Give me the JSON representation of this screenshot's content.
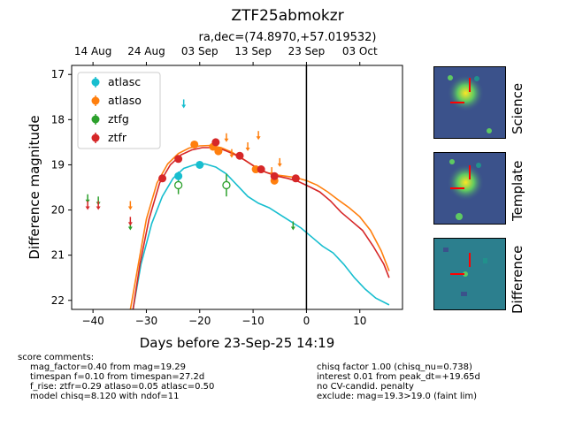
{
  "header": {
    "title": "ZTF25abmokzr",
    "subtitle": "ra,dec=(74.8970,+57.019532)"
  },
  "chart_data": {
    "type": "scatter",
    "xlabel": "Days before 23-Sep-25 14:19",
    "ylabel": "Difference magnitude",
    "xlim": [
      -44,
      18
    ],
    "ylim": [
      22.2,
      16.8
    ],
    "y_inverted": true,
    "x_ticks": [
      -40,
      -30,
      -20,
      -10,
      0,
      10
    ],
    "y_ticks": [
      17,
      18,
      19,
      20,
      21,
      22
    ],
    "top_axis_ticks": [
      {
        "x": -40,
        "label": "14 Aug"
      },
      {
        "x": -30,
        "label": "24 Aug"
      },
      {
        "x": -20,
        "label": "03 Sep"
      },
      {
        "x": -10,
        "label": "13 Sep"
      },
      {
        "x": 0,
        "label": "23 Sep"
      },
      {
        "x": 10,
        "label": "03 Oct"
      }
    ],
    "vline_x": 0,
    "legend": {
      "position": "top-left",
      "entries": [
        "atlasc",
        "atlaso",
        "ztfg",
        "ztfr"
      ]
    },
    "series": [
      {
        "name": "atlasc",
        "color": "#17becf",
        "detections": [
          {
            "x": -20,
            "y": 19.0,
            "err": 0.05
          },
          {
            "x": -24,
            "y": 19.25,
            "err": 0.1
          }
        ],
        "upper_limits": [
          {
            "x": -23,
            "y": 17.65
          }
        ]
      },
      {
        "name": "atlaso",
        "color": "#ff7f0e",
        "detections": [
          {
            "x": -21,
            "y": 18.55,
            "err": 0.06
          },
          {
            "x": -17.5,
            "y": 18.6,
            "err": 0.06
          },
          {
            "x": -16.5,
            "y": 18.7,
            "err": 0.06
          },
          {
            "x": -9.5,
            "y": 19.1,
            "err": 0.07
          },
          {
            "x": -6,
            "y": 19.35,
            "err": 0.07
          }
        ],
        "upper_limits": [
          {
            "x": -33,
            "y": 19.9
          },
          {
            "x": -15,
            "y": 18.4
          },
          {
            "x": -14,
            "y": 18.75
          },
          {
            "x": -11,
            "y": 18.6
          },
          {
            "x": -9,
            "y": 18.35
          },
          {
            "x": -6.5,
            "y": 19.15
          },
          {
            "x": -5,
            "y": 18.95
          }
        ]
      },
      {
        "name": "ztfg",
        "color": "#2ca02c",
        "nondetections": [
          {
            "x": -24,
            "y": 19.45,
            "err": 0.2
          },
          {
            "x": -15,
            "y": 19.45,
            "err": 0.25
          }
        ],
        "upper_limits": [
          {
            "x": -41,
            "y": 19.75
          },
          {
            "x": -39,
            "y": 19.8
          },
          {
            "x": -33,
            "y": 20.35
          },
          {
            "x": -2.5,
            "y": 20.35
          }
        ]
      },
      {
        "name": "ztfr",
        "color": "#d62728",
        "detections": [
          {
            "x": -27,
            "y": 19.3,
            "err": 0.05
          },
          {
            "x": -24,
            "y": 18.87,
            "err": 0.04
          },
          {
            "x": -17,
            "y": 18.5,
            "err": 0.05
          },
          {
            "x": -12.5,
            "y": 18.8,
            "err": 0.05
          },
          {
            "x": -8.5,
            "y": 19.1,
            "err": 0.05
          },
          {
            "x": -6,
            "y": 19.25,
            "err": 0.05
          },
          {
            "x": -2,
            "y": 19.3,
            "err": 0.04
          }
        ],
        "upper_limits": [
          {
            "x": -41,
            "y": 19.9
          },
          {
            "x": -39,
            "y": 19.9
          },
          {
            "x": -33,
            "y": 20.25
          }
        ]
      }
    ],
    "model_curves": [
      {
        "name": "atlasc",
        "color": "#17becf",
        "points": [
          [
            -32.5,
            22.2
          ],
          [
            -31,
            21.2
          ],
          [
            -29,
            20.3
          ],
          [
            -27,
            19.7
          ],
          [
            -25,
            19.3
          ],
          [
            -23,
            19.08
          ],
          [
            -21,
            19.0
          ],
          [
            -19,
            18.98
          ],
          [
            -17,
            19.05
          ],
          [
            -15,
            19.2
          ],
          [
            -13,
            19.45
          ],
          [
            -11,
            19.7
          ],
          [
            -9,
            19.85
          ],
          [
            -7,
            19.95
          ],
          [
            -5,
            20.1
          ],
          [
            -3,
            20.25
          ],
          [
            -1,
            20.4
          ],
          [
            1,
            20.6
          ],
          [
            3,
            20.8
          ],
          [
            5,
            20.95
          ],
          [
            7,
            21.2
          ],
          [
            9,
            21.5
          ],
          [
            11,
            21.75
          ],
          [
            13,
            21.95
          ],
          [
            15.5,
            22.1
          ]
        ]
      },
      {
        "name": "atlaso",
        "color": "#ff7f0e",
        "points": [
          [
            -33,
            22.2
          ],
          [
            -31.5,
            21.2
          ],
          [
            -30,
            20.2
          ],
          [
            -28,
            19.4
          ],
          [
            -26,
            18.98
          ],
          [
            -24,
            18.75
          ],
          [
            -22,
            18.63
          ],
          [
            -20,
            18.58
          ],
          [
            -18,
            18.57
          ],
          [
            -16,
            18.62
          ],
          [
            -14,
            18.72
          ],
          [
            -12,
            18.86
          ],
          [
            -10,
            19.02
          ],
          [
            -8,
            19.15
          ],
          [
            -6,
            19.22
          ],
          [
            -4,
            19.25
          ],
          [
            -2,
            19.28
          ],
          [
            0,
            19.35
          ],
          [
            2,
            19.45
          ],
          [
            4,
            19.6
          ],
          [
            6,
            19.78
          ],
          [
            8,
            19.95
          ],
          [
            10,
            20.15
          ],
          [
            12,
            20.45
          ],
          [
            14,
            20.9
          ],
          [
            15.5,
            21.35
          ]
        ]
      },
      {
        "name": "ztfr",
        "color": "#d62728",
        "points": [
          [
            -32.5,
            22.2
          ],
          [
            -31.2,
            21.2
          ],
          [
            -29.5,
            20.2
          ],
          [
            -27.5,
            19.4
          ],
          [
            -25.5,
            19.0
          ],
          [
            -23.5,
            18.78
          ],
          [
            -21.5,
            18.67
          ],
          [
            -19.5,
            18.62
          ],
          [
            -17.5,
            18.62
          ],
          [
            -15.5,
            18.67
          ],
          [
            -13.5,
            18.77
          ],
          [
            -11.5,
            18.9
          ],
          [
            -9.5,
            19.05
          ],
          [
            -7.5,
            19.17
          ],
          [
            -5.5,
            19.25
          ],
          [
            -3.5,
            19.3
          ],
          [
            -1.5,
            19.37
          ],
          [
            0.5,
            19.48
          ],
          [
            2.5,
            19.6
          ],
          [
            4.5,
            19.8
          ],
          [
            6.5,
            20.05
          ],
          [
            8.5,
            20.25
          ],
          [
            10.5,
            20.45
          ],
          [
            12.5,
            20.8
          ],
          [
            14.5,
            21.2
          ],
          [
            15.5,
            21.5
          ]
        ]
      }
    ]
  },
  "stamps": {
    "science_label": "Science",
    "template_label": "Template",
    "difference_label": "Difference"
  },
  "comments": {
    "heading": "score comments:",
    "left": [
      "mag_factor=0.40 from mag=19.29",
      "timespan f=0.10 from timespan=27.2d",
      "f_rise: ztfr=0.29 atlaso=0.05 atlasc=0.50",
      "model chisq=8.120 with ndof=11"
    ],
    "right": [
      "chisq factor 1.00 (chisq_nu=0.738)",
      "interest 0.01 from peak_dt=+19.65d",
      "no CV-candid. penalty",
      "exclude: mag=19.3>19.0 (faint lim)"
    ]
  }
}
